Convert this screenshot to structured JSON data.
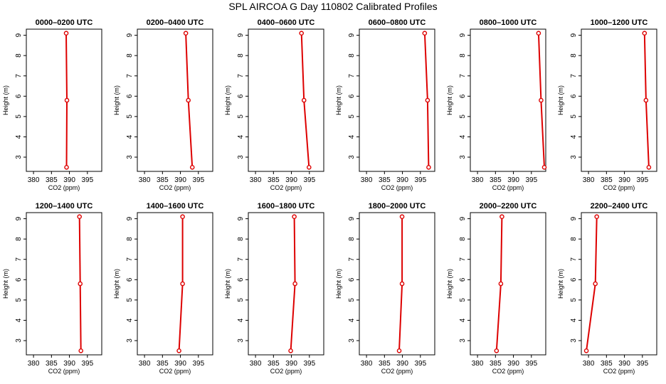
{
  "figure_title": "SPL AIRCOA G  Day 110802  Calibrated Profiles",
  "colors": {
    "series": "#dd0000",
    "axis": "#000000"
  },
  "chart_data": [
    {
      "type": "line",
      "title": "0000–0200 UTC",
      "xlabel": "CO2 (ppm)",
      "ylabel": "Height (m)",
      "xlim": [
        378,
        399
      ],
      "ylim": [
        2.3,
        9.3
      ],
      "xticks": [
        380,
        385,
        390,
        395
      ],
      "yticks": [
        3,
        4,
        5,
        6,
        7,
        8,
        9
      ],
      "series": [
        {
          "x": [
            389.2,
            389.3,
            389.1
          ],
          "y": [
            2.5,
            5.8,
            9.1
          ]
        }
      ]
    },
    {
      "type": "line",
      "title": "0200–0400 UTC",
      "xlabel": "CO2 (ppm)",
      "ylabel": "Height (m)",
      "xlim": [
        378,
        399
      ],
      "ylim": [
        2.3,
        9.3
      ],
      "xticks": [
        380,
        385,
        390,
        395
      ],
      "yticks": [
        3,
        4,
        5,
        6,
        7,
        8,
        9
      ],
      "series": [
        {
          "x": [
            393.3,
            392.2,
            391.5
          ],
          "y": [
            2.5,
            5.8,
            9.1
          ]
        }
      ]
    },
    {
      "type": "line",
      "title": "0400–0600 UTC",
      "xlabel": "CO2 (ppm)",
      "ylabel": "Height (m)",
      "xlim": [
        378,
        399
      ],
      "ylim": [
        2.3,
        9.3
      ],
      "xticks": [
        380,
        385,
        390,
        395
      ],
      "yticks": [
        3,
        4,
        5,
        6,
        7,
        8,
        9
      ],
      "series": [
        {
          "x": [
            394.9,
            393.5,
            392.8
          ],
          "y": [
            2.5,
            5.8,
            9.1
          ]
        }
      ]
    },
    {
      "type": "line",
      "title": "0600–0800 UTC",
      "xlabel": "CO2 (ppm)",
      "ylabel": "Height (m)",
      "xlim": [
        378,
        399
      ],
      "ylim": [
        2.3,
        9.3
      ],
      "xticks": [
        380,
        385,
        390,
        395
      ],
      "yticks": [
        3,
        4,
        5,
        6,
        7,
        8,
        9
      ],
      "series": [
        {
          "x": [
            397.3,
            397.0,
            396.2
          ],
          "y": [
            2.5,
            5.8,
            9.1
          ]
        }
      ]
    },
    {
      "type": "line",
      "title": "0800–1000 UTC",
      "xlabel": "CO2 (ppm)",
      "ylabel": "Height (m)",
      "xlim": [
        378,
        399
      ],
      "ylim": [
        2.3,
        9.3
      ],
      "xticks": [
        380,
        385,
        390,
        395
      ],
      "yticks": [
        3,
        4,
        5,
        6,
        7,
        8,
        9
      ],
      "series": [
        {
          "x": [
            398.6,
            397.7,
            397.0
          ],
          "y": [
            2.5,
            5.8,
            9.1
          ]
        }
      ]
    },
    {
      "type": "line",
      "title": "1000–1200 UTC",
      "xlabel": "CO2 (ppm)",
      "ylabel": "Height (m)",
      "xlim": [
        378,
        399
      ],
      "ylim": [
        2.3,
        9.3
      ],
      "xticks": [
        380,
        385,
        390,
        395
      ],
      "yticks": [
        3,
        4,
        5,
        6,
        7,
        8,
        9
      ],
      "series": [
        {
          "x": [
            396.8,
            396.0,
            395.6
          ],
          "y": [
            2.5,
            5.8,
            9.1
          ]
        }
      ]
    },
    {
      "type": "line",
      "title": "1200–1400 UTC",
      "xlabel": "CO2 (ppm)",
      "ylabel": "Height (m)",
      "xlim": [
        378,
        399
      ],
      "ylim": [
        2.3,
        9.3
      ],
      "xticks": [
        380,
        385,
        390,
        395
      ],
      "yticks": [
        3,
        4,
        5,
        6,
        7,
        8,
        9
      ],
      "series": [
        {
          "x": [
            393.2,
            393.0,
            392.8
          ],
          "y": [
            2.5,
            5.8,
            9.1
          ]
        }
      ]
    },
    {
      "type": "line",
      "title": "1400–1600 UTC",
      "xlabel": "CO2 (ppm)",
      "ylabel": "Height (m)",
      "xlim": [
        378,
        399
      ],
      "ylim": [
        2.3,
        9.3
      ],
      "xticks": [
        380,
        385,
        390,
        395
      ],
      "yticks": [
        3,
        4,
        5,
        6,
        7,
        8,
        9
      ],
      "series": [
        {
          "x": [
            389.6,
            390.6,
            390.6
          ],
          "y": [
            2.5,
            5.8,
            9.1
          ]
        }
      ]
    },
    {
      "type": "line",
      "title": "1600–1800 UTC",
      "xlabel": "CO2 (ppm)",
      "ylabel": "Height (m)",
      "xlim": [
        378,
        399
      ],
      "ylim": [
        2.3,
        9.3
      ],
      "xticks": [
        380,
        385,
        390,
        395
      ],
      "yticks": [
        3,
        4,
        5,
        6,
        7,
        8,
        9
      ],
      "series": [
        {
          "x": [
            389.8,
            391.0,
            390.8
          ],
          "y": [
            2.5,
            5.8,
            9.1
          ]
        }
      ]
    },
    {
      "type": "line",
      "title": "1800–2000 UTC",
      "xlabel": "CO2 (ppm)",
      "ylabel": "Height (m)",
      "xlim": [
        378,
        399
      ],
      "ylim": [
        2.3,
        9.3
      ],
      "xticks": [
        380,
        385,
        390,
        395
      ],
      "yticks": [
        3,
        4,
        5,
        6,
        7,
        8,
        9
      ],
      "series": [
        {
          "x": [
            389.1,
            389.9,
            389.9
          ],
          "y": [
            2.5,
            5.8,
            9.1
          ]
        }
      ]
    },
    {
      "type": "line",
      "title": "2000–2200 UTC",
      "xlabel": "CO2 (ppm)",
      "ylabel": "Height (m)",
      "xlim": [
        378,
        399
      ],
      "ylim": [
        2.3,
        9.3
      ],
      "xticks": [
        380,
        385,
        390,
        395
      ],
      "yticks": [
        3,
        4,
        5,
        6,
        7,
        8,
        9
      ],
      "series": [
        {
          "x": [
            385.3,
            386.5,
            386.8
          ],
          "y": [
            2.5,
            5.8,
            9.1
          ]
        }
      ]
    },
    {
      "type": "line",
      "title": "2200–2400 UTC",
      "xlabel": "CO2 (ppm)",
      "ylabel": "Height (m)",
      "xlim": [
        378,
        399
      ],
      "ylim": [
        2.3,
        9.3
      ],
      "xticks": [
        380,
        385,
        390,
        395
      ],
      "yticks": [
        3,
        4,
        5,
        6,
        7,
        8,
        9
      ],
      "series": [
        {
          "x": [
            379.4,
            381.9,
            382.3
          ],
          "y": [
            2.5,
            5.8,
            9.1
          ]
        }
      ]
    }
  ]
}
